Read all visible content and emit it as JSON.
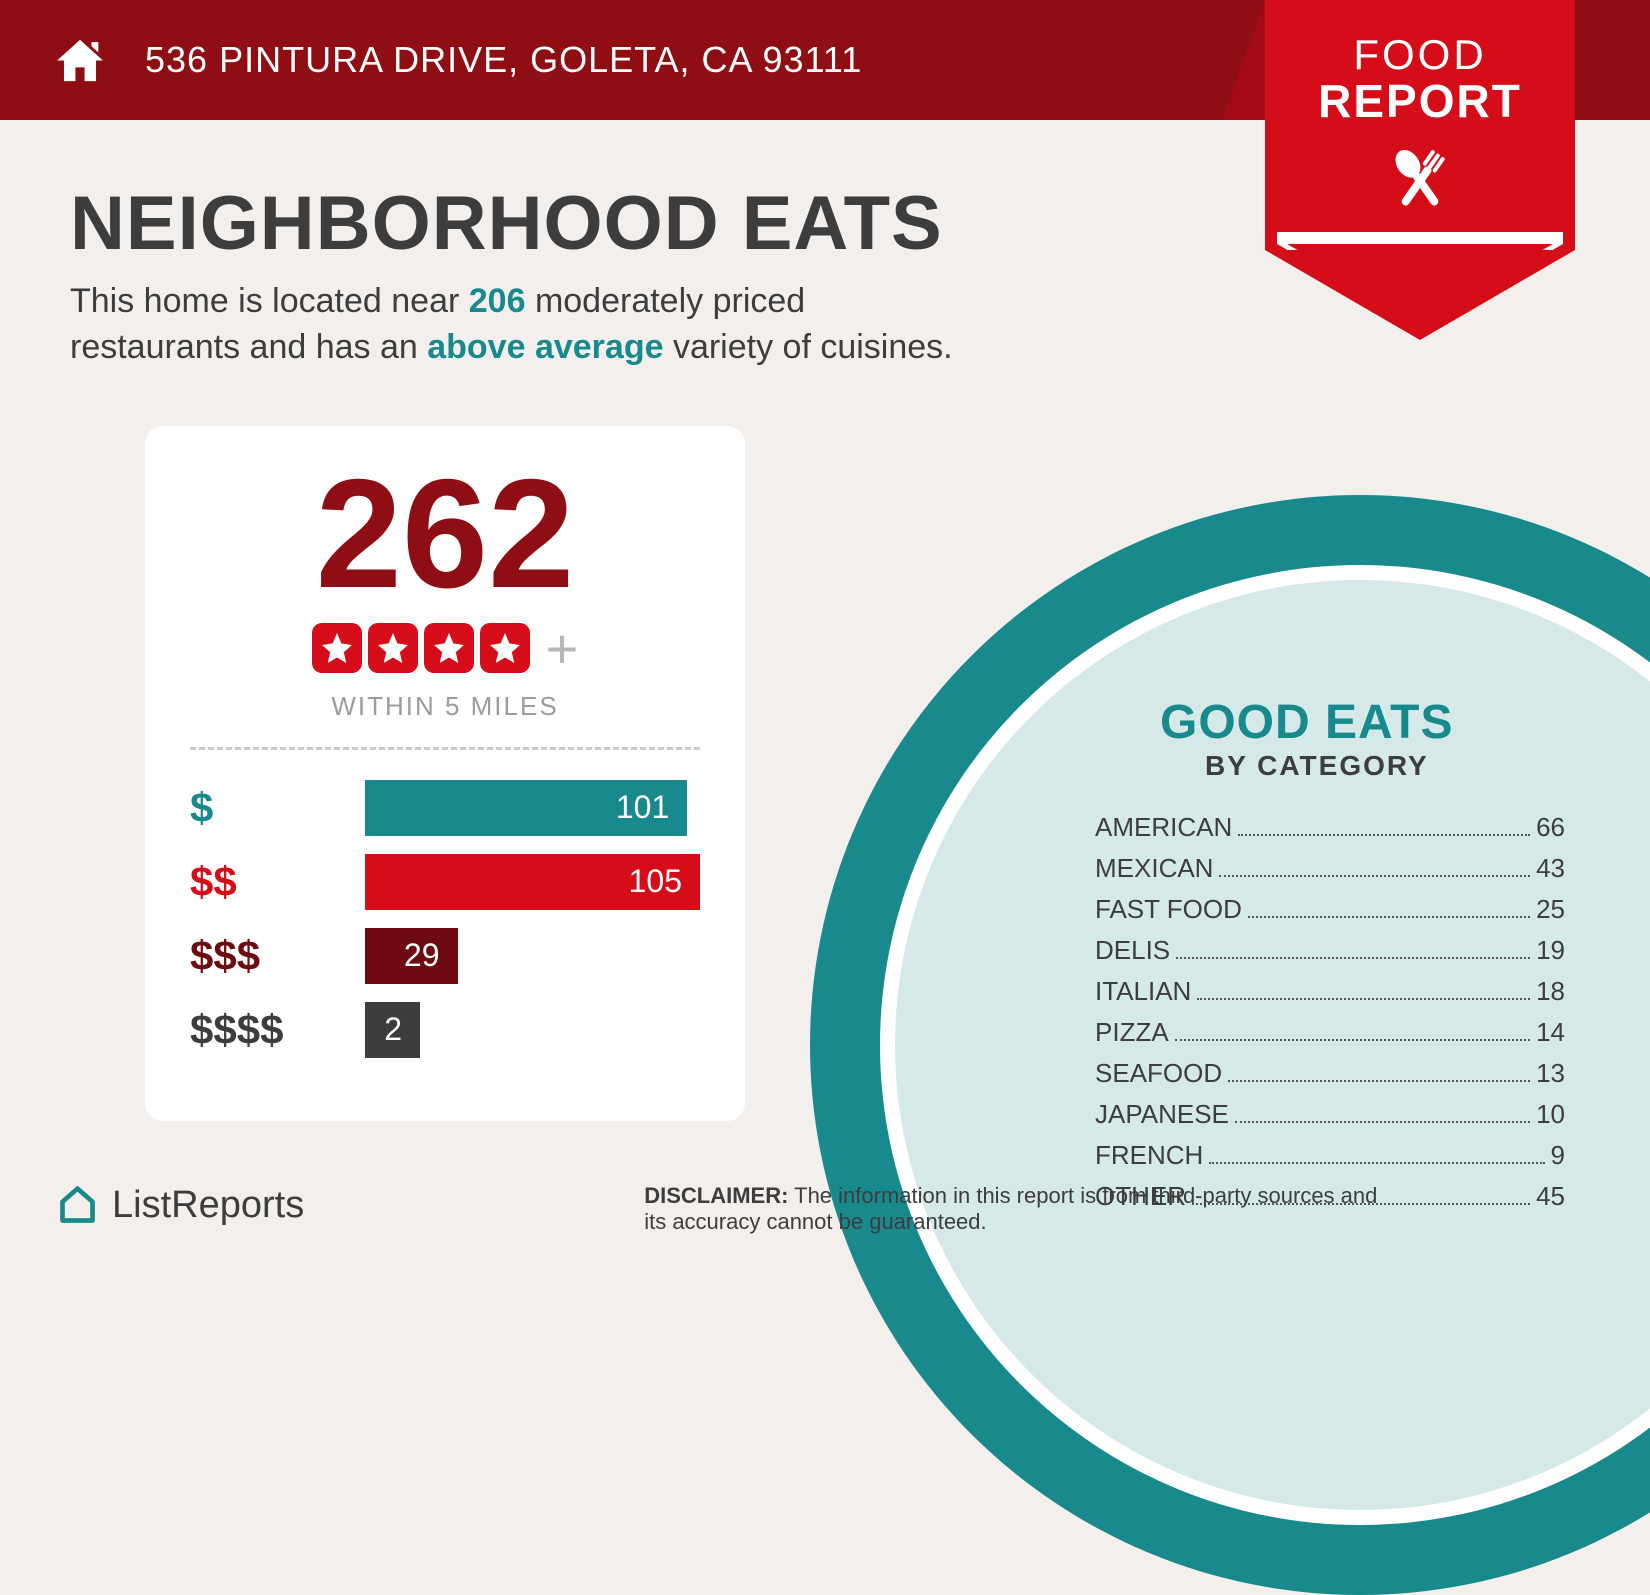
{
  "header": {
    "address": "536 PINTURA DRIVE, GOLETA, CA 93111",
    "bar_color": "#8e0e14"
  },
  "badge": {
    "line1": "FOOD",
    "line2": "REPORT",
    "bg_color": "#d40d18"
  },
  "main": {
    "title": "NEIGHBORHOOD EATS",
    "subtitle_pre": "This home is located near ",
    "subtitle_count": "206",
    "subtitle_mid": " moderately priced restaurants and has an ",
    "subtitle_hl": "above average",
    "subtitle_post": " variety of cuisines.",
    "highlight_color": "#188a8d"
  },
  "card": {
    "big_number": "262",
    "big_number_color": "#8e0e14",
    "stars": 4,
    "star_bg": "#d40d18",
    "plus": "+",
    "within": "WITHIN 5 MILES",
    "price_bars": {
      "max": 105,
      "rows": [
        {
          "label": "$",
          "value": 101,
          "color": "#188a8d",
          "label_color": "#188a8d"
        },
        {
          "label": "$$",
          "value": 105,
          "color": "#d40d18",
          "label_color": "#d40d18"
        },
        {
          "label": "$$$",
          "value": 29,
          "color": "#6e0b11",
          "label_color": "#6e0b11"
        },
        {
          "label": "$$$$",
          "value": 2,
          "color": "#3d3d3d",
          "label_color": "#3d3d3d"
        }
      ]
    }
  },
  "good_eats": {
    "title": "GOOD EATS",
    "subtitle": "BY CATEGORY",
    "ring_color": "#188a8d",
    "inner_color": "#d5e9e8",
    "categories": [
      {
        "name": "AMERICAN",
        "value": 66
      },
      {
        "name": "MEXICAN",
        "value": 43
      },
      {
        "name": "FAST FOOD",
        "value": 25
      },
      {
        "name": "DELIS",
        "value": 19
      },
      {
        "name": "ITALIAN",
        "value": 18
      },
      {
        "name": "PIZZA",
        "value": 14
      },
      {
        "name": "SEAFOOD",
        "value": 13
      },
      {
        "name": "JAPANESE",
        "value": 10
      },
      {
        "name": "FRENCH",
        "value": 9
      },
      {
        "name": "OTHER",
        "value": 45
      }
    ]
  },
  "footer": {
    "logo_text": "ListReports",
    "logo_color": "#188a8d",
    "disclaimer_label": "DISCLAIMER:",
    "disclaimer_text": " The information in this report is from third-party sources and its accuracy cannot be guaranteed."
  }
}
